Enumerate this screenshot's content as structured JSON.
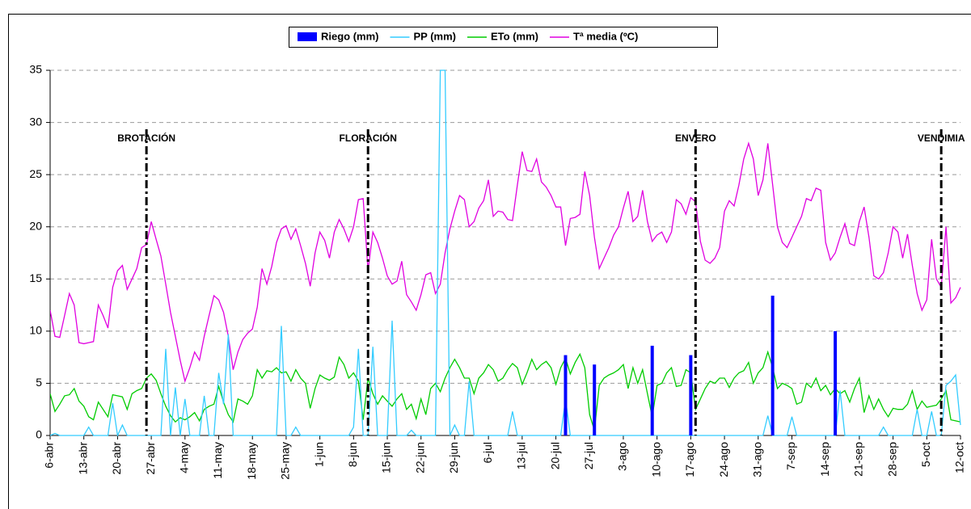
{
  "chart_data": {
    "type": "line",
    "categories": [
      "6-abr",
      null,
      null,
      null,
      null,
      null,
      null,
      "13-abr",
      null,
      null,
      null,
      null,
      null,
      null,
      "20-abr",
      null,
      null,
      null,
      null,
      null,
      null,
      "27-abr",
      null,
      null,
      null,
      null,
      null,
      null,
      "4-may",
      null,
      null,
      null,
      null,
      null,
      null,
      "11-may",
      null,
      null,
      null,
      null,
      null,
      null,
      "18-may",
      null,
      null,
      null,
      null,
      null,
      null,
      "25-may",
      null,
      null,
      null,
      null,
      null,
      null,
      "1-jun",
      null,
      null,
      null,
      null,
      null,
      null,
      "8-jun",
      null,
      null,
      null,
      null,
      null,
      null,
      "15-jun",
      null,
      null,
      null,
      null,
      null,
      null,
      "22-jun",
      null,
      null,
      null,
      null,
      null,
      null,
      "29-jun",
      null,
      null,
      null,
      null,
      null,
      null,
      "6-jul",
      null,
      null,
      null,
      null,
      null,
      null,
      "13-jul",
      null,
      null,
      null,
      null,
      null,
      null,
      "20-jul",
      null,
      null,
      null,
      null,
      null,
      null,
      "27-jul",
      null,
      null,
      null,
      null,
      null,
      null,
      "3-ago",
      null,
      null,
      null,
      null,
      null,
      null,
      "10-ago",
      null,
      null,
      null,
      null,
      null,
      null,
      "17-ago",
      null,
      null,
      null,
      null,
      null,
      null,
      "24-ago",
      null,
      null,
      null,
      null,
      null,
      null,
      "31-ago",
      null,
      null,
      null,
      null,
      null,
      null,
      "7-sep",
      null,
      null,
      null,
      null,
      null,
      null,
      "14-sep",
      null,
      null,
      null,
      null,
      null,
      null,
      "21-sep",
      null,
      null,
      null,
      null,
      null,
      null,
      "28-sep",
      null,
      null,
      null,
      null,
      null,
      null,
      "5-oct",
      null,
      null,
      null,
      null,
      null,
      null,
      "12-oct"
    ],
    "series": [
      {
        "name": "Riego (mm)",
        "kind": "bar",
        "color": "#0000ff",
        "values": [
          0,
          0,
          0,
          0,
          0,
          0,
          0,
          0,
          0,
          0,
          0,
          0,
          0,
          0,
          0,
          0,
          0,
          0,
          0,
          0,
          0,
          0,
          0,
          0,
          0,
          0,
          0,
          0,
          0,
          0,
          0,
          0,
          0,
          0,
          0,
          0,
          0,
          0,
          0,
          0,
          0,
          0,
          0,
          0,
          0,
          0,
          0,
          0,
          0,
          0,
          0,
          0,
          0,
          0,
          0,
          0,
          0,
          0,
          0,
          0,
          0,
          0,
          0,
          0,
          0,
          0,
          0,
          0,
          0,
          0,
          0,
          0,
          0,
          0,
          0,
          0,
          0,
          0,
          0,
          0,
          0,
          0,
          0,
          0,
          0,
          0,
          0,
          0,
          0,
          0,
          0,
          0,
          0,
          0,
          0,
          0,
          0,
          0,
          0,
          0,
          0,
          0,
          0,
          0,
          0,
          0,
          0,
          7.7,
          0,
          0,
          0,
          0,
          0,
          6.8,
          0,
          0,
          0,
          0,
          0,
          0,
          0,
          0,
          0,
          0,
          0,
          8.6,
          0,
          0,
          0,
          0,
          0,
          0,
          0,
          7.7,
          0,
          0,
          0,
          0,
          0,
          0,
          0,
          0,
          0,
          0,
          0,
          0,
          0,
          0,
          0,
          0,
          13.4,
          0,
          0,
          0,
          0,
          0,
          0,
          0,
          0,
          0,
          0,
          0,
          0,
          10.0,
          0,
          0,
          0,
          0,
          0,
          0,
          0,
          0,
          0,
          0,
          0,
          0,
          0,
          0,
          0,
          0,
          0,
          0,
          0,
          0,
          0,
          0,
          0,
          0,
          0,
          0
        ]
      },
      {
        "name": "PP (mm)",
        "kind": "line",
        "color": "#33ccff",
        "values": [
          0,
          0.2,
          0,
          0,
          0,
          0,
          0,
          0,
          0.8,
          0,
          0,
          0,
          0,
          3.1,
          0,
          1.0,
          0,
          0,
          0,
          0,
          0,
          0,
          0,
          0,
          8.3,
          0,
          4.6,
          0,
          3.5,
          0,
          0,
          0,
          3.8,
          0,
          0,
          6.0,
          3.0,
          9.7,
          0,
          0,
          0,
          0,
          0,
          0,
          0,
          0,
          0,
          0,
          10.5,
          0,
          0,
          0.8,
          0,
          0,
          0,
          0,
          0,
          0,
          0,
          0,
          0,
          0,
          0,
          0.8,
          8.3,
          0,
          0,
          8.5,
          0,
          0,
          0,
          11.0,
          0,
          0,
          0,
          0.5,
          0,
          0,
          0,
          0,
          0,
          35,
          35,
          0,
          1.0,
          0,
          0,
          5.2,
          0,
          0,
          0,
          0,
          0,
          0,
          0,
          0,
          2.3,
          0,
          0,
          0,
          0,
          0,
          0,
          0,
          0,
          0,
          0,
          3.5,
          0,
          0,
          0,
          0,
          0,
          0,
          0,
          0,
          0,
          0,
          0,
          0,
          0,
          0,
          0,
          0,
          0,
          0,
          0,
          0,
          0,
          0,
          0,
          0,
          0,
          0,
          0,
          0,
          0,
          0,
          0,
          0,
          0,
          0,
          0,
          0,
          0,
          0,
          0,
          0,
          0,
          1.9,
          0,
          0,
          0,
          0,
          1.8,
          0,
          0,
          0,
          0,
          0,
          0,
          0,
          0,
          0,
          4.3,
          0,
          0,
          0,
          0,
          0,
          0,
          0,
          0,
          0.8,
          0,
          0,
          0,
          0,
          0,
          0,
          2.5,
          0,
          0,
          2.3,
          0,
          0,
          4.8,
          5.2,
          5.8,
          1.0
        ]
      },
      {
        "name": "ETo (mm)",
        "kind": "line",
        "color": "#00cc00",
        "values": [
          4.0,
          2.3,
          3.0,
          3.8,
          3.9,
          4.5,
          3.3,
          2.8,
          1.8,
          1.5,
          3.2,
          2.5,
          1.8,
          3.9,
          3.8,
          3.7,
          2.5,
          4.0,
          4.3,
          4.5,
          5.5,
          5.9,
          5.3,
          4.0,
          2.8,
          1.9,
          1.3,
          1.7,
          1.5,
          1.8,
          2.2,
          1.4,
          2.5,
          2.8,
          3.0,
          4.7,
          3.2,
          2.0,
          1.3,
          3.5,
          3.3,
          3.0,
          3.8,
          6.3,
          5.5,
          6.2,
          6.1,
          6.5,
          6.0,
          6.1,
          5.2,
          6.3,
          5.5,
          5.0,
          2.6,
          4.5,
          5.8,
          5.5,
          5.3,
          5.6,
          7.5,
          6.8,
          5.5,
          6.0,
          5.2,
          1.5,
          5.5,
          4.0,
          3.0,
          3.8,
          3.3,
          2.8,
          3.5,
          4.0,
          2.5,
          3.0,
          1.6,
          3.5,
          2.0,
          4.5,
          5.0,
          4.2,
          5.5,
          6.5,
          7.3,
          6.5,
          5.5,
          5.5,
          4.0,
          5.5,
          6.0,
          6.8,
          6.3,
          5.2,
          5.5,
          6.3,
          6.9,
          6.5,
          4.9,
          6.0,
          7.3,
          6.3,
          6.8,
          7.1,
          6.5,
          4.9,
          6.5,
          7.4,
          5.9,
          7.0,
          7.8,
          6.5,
          2.0,
          0.5,
          4.8,
          5.5,
          5.8,
          6.0,
          6.3,
          6.8,
          4.5,
          6.5,
          5.0,
          6.3,
          4.0,
          1.8,
          4.8,
          5.0,
          6.0,
          6.5,
          4.7,
          4.8,
          6.3,
          6.0,
          2.5,
          3.5,
          4.5,
          5.2,
          5.0,
          5.5,
          5.5,
          4.6,
          5.5,
          6.0,
          6.2,
          7.0,
          5.0,
          6.0,
          6.5,
          8.0,
          6.5,
          4.5,
          5.0,
          4.8,
          4.5,
          3.0,
          3.2,
          5.0,
          4.6,
          5.5,
          4.3,
          4.8,
          3.9,
          4.5,
          4.0,
          4.3,
          3.2,
          4.5,
          5.5,
          2.2,
          3.8,
          2.5,
          3.5,
          2.5,
          1.8,
          2.6,
          2.5,
          2.5,
          3.0,
          4.3,
          2.5,
          3.3,
          2.7,
          2.8,
          2.9,
          3.5,
          4.3,
          1.5,
          1.4,
          1.3
        ]
      },
      {
        "name": "Tª media (ºC)",
        "kind": "line",
        "color": "#e000e0",
        "values": [
          12,
          9.5,
          9.4,
          11.5,
          13.6,
          12.5,
          8.9,
          8.8,
          8.9,
          9.0,
          12.5,
          11.5,
          10.3,
          14.2,
          15.8,
          16.3,
          14.0,
          15.0,
          16.0,
          18.0,
          18.3,
          20.5,
          18.8,
          17.2,
          14.5,
          11.8,
          9.5,
          7.2,
          5.2,
          6.5,
          8.0,
          7.2,
          9.5,
          11.5,
          13.4,
          13.0,
          11.8,
          9.5,
          6.3,
          8.0,
          9.2,
          9.8,
          10.2,
          12.3,
          16.0,
          14.5,
          16.2,
          18.5,
          19.8,
          20.1,
          18.8,
          19.8,
          18.2,
          16.5,
          14.3,
          17.5,
          19.5,
          18.7,
          17.0,
          19.5,
          20.7,
          19.8,
          18.6,
          20.0,
          22.6,
          22.7,
          15.8,
          19.5,
          18.5,
          17.0,
          15.3,
          14.5,
          14.8,
          16.7,
          13.5,
          12.8,
          12.0,
          13.5,
          15.4,
          15.6,
          13.6,
          14.5,
          17.5,
          19.8,
          21.5,
          23.0,
          22.6,
          20.0,
          20.5,
          21.8,
          22.5,
          24.5,
          21.0,
          21.5,
          21.4,
          20.7,
          20.6,
          24.0,
          27.2,
          25.4,
          25.3,
          26.5,
          24.3,
          23.8,
          23.0,
          21.9,
          21.9,
          18.2,
          20.8,
          20.9,
          21.2,
          25.3,
          23.0,
          19.0,
          16.0,
          17.0,
          18.0,
          19.2,
          20.0,
          21.8,
          23.4,
          20.5,
          21.0,
          23.5,
          20.5,
          18.6,
          19.2,
          19.5,
          18.5,
          19.5,
          22.6,
          22.2,
          21.2,
          22.8,
          22.4,
          18.6,
          16.8,
          16.5,
          17.0,
          18.0,
          21.5,
          22.5,
          22.0,
          24.0,
          26.5,
          28.0,
          26.5,
          23.0,
          24.5,
          28.0,
          24.0,
          20.0,
          18.5,
          18.0,
          19.0,
          20.0,
          21.0,
          22.7,
          22.5,
          23.7,
          23.5,
          18.5,
          16.8,
          17.5,
          19.0,
          20.3,
          18.4,
          18.2,
          20.5,
          21.9,
          19.0,
          15.3,
          15.0,
          15.6,
          17.5,
          20.0,
          19.5,
          17.0,
          19.3,
          16.3,
          13.6,
          12.0,
          13.0,
          18.8,
          15.0,
          14.2,
          20.0,
          12.7,
          13.2,
          14.2
        ]
      }
    ],
    "annotations": [
      {
        "label": "BROTACIÓN",
        "index": 20
      },
      {
        "label": "FLORACIÓN",
        "index": 66
      },
      {
        "label": "ENVERO",
        "index": 134
      },
      {
        "label": "VENDIMIA",
        "index": 185
      }
    ],
    "ylim": [
      0,
      35
    ],
    "yticks": [
      0,
      5,
      10,
      15,
      20,
      25,
      30,
      35
    ],
    "grid": true
  }
}
